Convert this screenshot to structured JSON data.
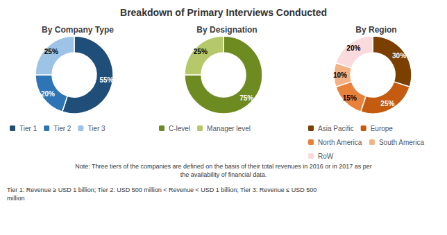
{
  "title": "Breakdown of Primary Interviews Conducted",
  "chart_data": [
    {
      "type": "pie",
      "title": "By Company Type",
      "categories": [
        "Tier 1",
        "Tier 2",
        "Tier 3"
      ],
      "values": [
        55,
        20,
        25
      ],
      "value_labels": [
        "55%",
        "20%",
        "25%"
      ],
      "colors": [
        "#1F4E79",
        "#2E75B6",
        "#9DC3E6"
      ],
      "data_labels": true,
      "legend": "bottom"
    },
    {
      "type": "pie",
      "title": "By Designation",
      "categories": [
        "C-level",
        "Manager level"
      ],
      "values": [
        75,
        25
      ],
      "value_labels": [
        "75%",
        "25%"
      ],
      "colors": [
        "#6E8B22",
        "#B5C96A"
      ],
      "data_labels": true,
      "legend": "bottom"
    },
    {
      "type": "pie",
      "title": "By Region",
      "categories": [
        "Asia Pacific",
        "Europe",
        "North America",
        "South America",
        "RoW"
      ],
      "values": [
        30,
        25,
        15,
        10,
        20
      ],
      "value_labels": [
        "30%",
        "25%",
        "15%",
        "10%",
        "20%"
      ],
      "colors": [
        "#7B3F00",
        "#C55A11",
        "#E8813A",
        "#F4B183",
        "#FADADD"
      ],
      "data_labels": true,
      "legend": "bottom"
    }
  ],
  "annotations": [
    "Note: Three tiers of the companies are defined on the basis of their total revenues in 2016 or in 2017 as per\nthe availability of financial data.",
    "Tier 1: Revenue ≥ USD 1 billion; Tier 2: USD 500 million < Revenue < USD 1 billion; Tier 3: Revenue ≤ USD 500\nmillion"
  ]
}
